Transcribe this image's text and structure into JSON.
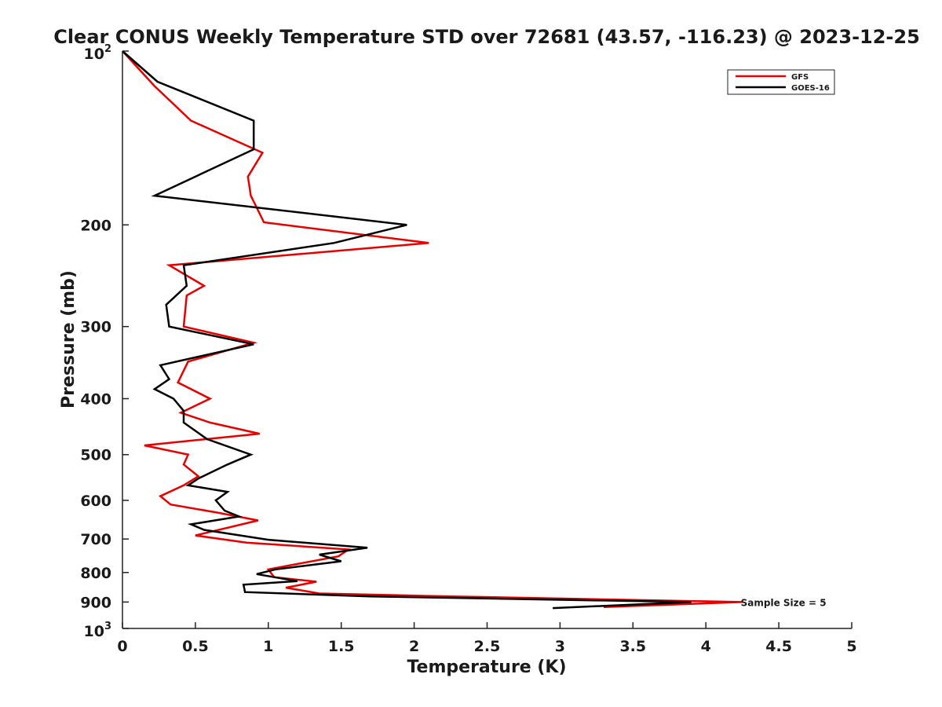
{
  "chart_data": {
    "type": "line",
    "title": "Clear CONUS Weekly Temperature STD over 72681 (43.57, -116.23) @ 2023-12-25",
    "xlabel": "Temperature (K)",
    "ylabel": "Pressure (mb)",
    "xlim": [
      0,
      5
    ],
    "ylim": [
      100,
      1000
    ],
    "y_scale": "log",
    "y_reversed": true,
    "grid": false,
    "legend_position": "top-right",
    "x_ticks": [
      "0",
      "0.5",
      "1",
      "1.5",
      "2",
      "2.5",
      "3",
      "3.5",
      "4",
      "4.5",
      "5"
    ],
    "x_tick_values": [
      0,
      0.5,
      1,
      1.5,
      2,
      2.5,
      3,
      3.5,
      4,
      4.5,
      5
    ],
    "y_ticks": [
      {
        "value": 100,
        "base": "10",
        "exp": "2"
      },
      {
        "value": 200,
        "label": "200"
      },
      {
        "value": 300,
        "label": "300"
      },
      {
        "value": 400,
        "label": "400"
      },
      {
        "value": 500,
        "label": "500"
      },
      {
        "value": 600,
        "label": "600"
      },
      {
        "value": 700,
        "label": "700"
      },
      {
        "value": 800,
        "label": "800"
      },
      {
        "value": 900,
        "label": "900"
      },
      {
        "value": 1000,
        "base": "10",
        "exp": "3"
      }
    ],
    "annotation": "Sample Size = 5",
    "annotation_anchor": {
      "x": 4.25,
      "y": 900
    },
    "series": [
      {
        "name": "GFS",
        "color": "#e60000",
        "points": [
          {
            "x": 0.0,
            "y": 100
          },
          {
            "x": 0.22,
            "y": 115
          },
          {
            "x": 0.47,
            "y": 132
          },
          {
            "x": 0.96,
            "y": 150
          },
          {
            "x": 0.86,
            "y": 165
          },
          {
            "x": 0.88,
            "y": 178
          },
          {
            "x": 0.97,
            "y": 198
          },
          {
            "x": 2.1,
            "y": 215
          },
          {
            "x": 0.32,
            "y": 235
          },
          {
            "x": 0.56,
            "y": 255
          },
          {
            "x": 0.44,
            "y": 265
          },
          {
            "x": 0.42,
            "y": 300
          },
          {
            "x": 0.9,
            "y": 320
          },
          {
            "x": 0.45,
            "y": 345
          },
          {
            "x": 0.38,
            "y": 375
          },
          {
            "x": 0.6,
            "y": 400
          },
          {
            "x": 0.4,
            "y": 423
          },
          {
            "x": 0.6,
            "y": 440
          },
          {
            "x": 0.94,
            "y": 460
          },
          {
            "x": 0.15,
            "y": 482
          },
          {
            "x": 0.45,
            "y": 500
          },
          {
            "x": 0.42,
            "y": 520
          },
          {
            "x": 0.52,
            "y": 545
          },
          {
            "x": 0.42,
            "y": 565
          },
          {
            "x": 0.26,
            "y": 590
          },
          {
            "x": 0.33,
            "y": 610
          },
          {
            "x": 0.65,
            "y": 630
          },
          {
            "x": 0.93,
            "y": 650
          },
          {
            "x": 0.5,
            "y": 690
          },
          {
            "x": 0.85,
            "y": 710
          },
          {
            "x": 1.55,
            "y": 730
          },
          {
            "x": 1.48,
            "y": 750
          },
          {
            "x": 1.0,
            "y": 790
          },
          {
            "x": 1.04,
            "y": 815
          },
          {
            "x": 1.33,
            "y": 830
          },
          {
            "x": 1.12,
            "y": 850
          },
          {
            "x": 1.35,
            "y": 870
          },
          {
            "x": 2.25,
            "y": 880
          },
          {
            "x": 4.25,
            "y": 900
          },
          {
            "x": 3.3,
            "y": 918
          }
        ]
      },
      {
        "name": "GOES-16",
        "color": "#000000",
        "points": [
          {
            "x": 0.0,
            "y": 100
          },
          {
            "x": 0.24,
            "y": 113
          },
          {
            "x": 0.9,
            "y": 132
          },
          {
            "x": 0.9,
            "y": 148
          },
          {
            "x": 0.22,
            "y": 178
          },
          {
            "x": 1.95,
            "y": 200
          },
          {
            "x": 1.45,
            "y": 215
          },
          {
            "x": 0.42,
            "y": 235
          },
          {
            "x": 0.44,
            "y": 255
          },
          {
            "x": 0.3,
            "y": 275
          },
          {
            "x": 0.32,
            "y": 300
          },
          {
            "x": 0.9,
            "y": 322
          },
          {
            "x": 0.26,
            "y": 350
          },
          {
            "x": 0.32,
            "y": 370
          },
          {
            "x": 0.22,
            "y": 385
          },
          {
            "x": 0.35,
            "y": 400
          },
          {
            "x": 0.42,
            "y": 420
          },
          {
            "x": 0.42,
            "y": 440
          },
          {
            "x": 0.58,
            "y": 470
          },
          {
            "x": 0.88,
            "y": 500
          },
          {
            "x": 0.72,
            "y": 520
          },
          {
            "x": 0.52,
            "y": 550
          },
          {
            "x": 0.45,
            "y": 565
          },
          {
            "x": 0.72,
            "y": 580
          },
          {
            "x": 0.64,
            "y": 600
          },
          {
            "x": 0.7,
            "y": 625
          },
          {
            "x": 0.8,
            "y": 640
          },
          {
            "x": 0.47,
            "y": 660
          },
          {
            "x": 0.56,
            "y": 675
          },
          {
            "x": 1.0,
            "y": 702
          },
          {
            "x": 1.68,
            "y": 725
          },
          {
            "x": 1.35,
            "y": 745
          },
          {
            "x": 1.5,
            "y": 765
          },
          {
            "x": 1.05,
            "y": 790
          },
          {
            "x": 0.92,
            "y": 805
          },
          {
            "x": 1.2,
            "y": 828
          },
          {
            "x": 0.83,
            "y": 840
          },
          {
            "x": 0.84,
            "y": 865
          },
          {
            "x": 1.7,
            "y": 880
          },
          {
            "x": 3.9,
            "y": 900
          },
          {
            "x": 2.95,
            "y": 922
          }
        ]
      }
    ]
  }
}
